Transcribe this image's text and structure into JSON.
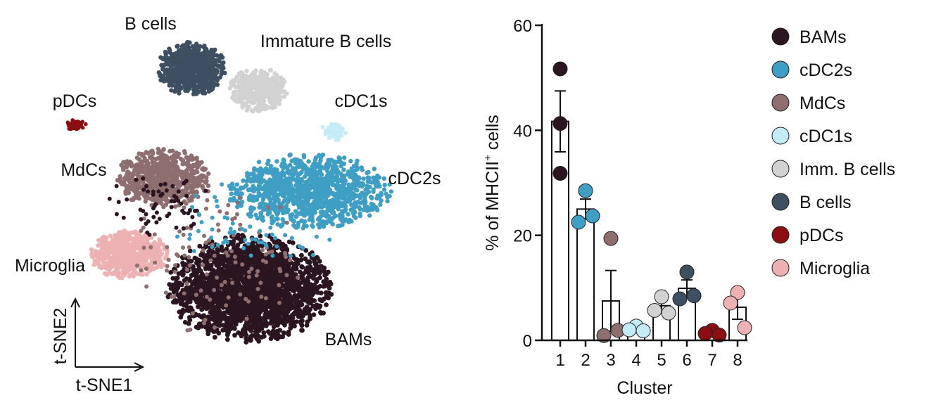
{
  "colors": {
    "BAMs": "#2a1520",
    "cDC2s": "#3f9ec3",
    "MdCs": "#8e6e6f",
    "cDC1s": "#c4ecf7",
    "Imm. B cells": "#d2d2d2",
    "B cells": "#3d4f61",
    "pDCs": "#8b0f10",
    "Microglia": "#eeb1b3"
  },
  "tsne_panel": {
    "cluster_labels": {
      "b_cells": "B cells",
      "immature_b_cells": "Immature B cells",
      "pdcs": "pDCs",
      "cdc1s": "cDC1s",
      "mdcs": "MdCs",
      "cdc2s": "cDC2s",
      "microglia": "Microglia",
      "bams": "BAMs"
    },
    "axis1_label": "t-SNE1",
    "axis2_label": "t-SNE2"
  },
  "chart_data": [
    {
      "type": "bar",
      "title": "",
      "xlabel": "Cluster",
      "ylabel_main": "% of MHCII",
      "ylabel_sup": "+",
      "ylabel_tail": " cells",
      "ylim": [
        0,
        60
      ],
      "yticks": [
        0,
        20,
        40,
        60
      ],
      "grid": false,
      "legend_position": "right",
      "categories": [
        "1",
        "2",
        "3",
        "4",
        "5",
        "6",
        "7",
        "8"
      ],
      "cluster_names": [
        "BAMs",
        "cDC2s",
        "MdCs",
        "cDC1s",
        "Imm. B cells",
        "B cells",
        "pDCs",
        "Microglia"
      ],
      "values": [
        41.7,
        25.0,
        7.5,
        2.2,
        6.6,
        9.9,
        1.5,
        6.3
      ],
      "error": [
        5.8,
        1.9,
        5.8,
        0.5,
        1.0,
        1.6,
        0.4,
        2.3
      ],
      "points": [
        [
          51.7,
          41.3,
          31.8
        ],
        [
          28.5,
          22.5,
          23.7
        ],
        [
          19.4,
          0.9,
          1.9
        ],
        [
          2.7,
          2.0,
          1.8
        ],
        [
          8.3,
          5.7,
          5.2
        ],
        [
          13.0,
          7.9,
          8.5
        ],
        [
          1.9,
          1.3,
          1.0
        ],
        [
          9.1,
          7.1,
          2.4
        ]
      ]
    }
  ]
}
